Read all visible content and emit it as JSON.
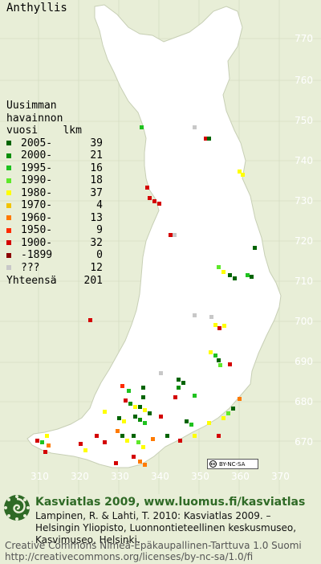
{
  "species": "Anthyllis",
  "legend": {
    "header": [
      "Uusimman",
      "havainnon",
      "vuosi    lkm"
    ],
    "rows": [
      {
        "label": "2005-",
        "count": "39",
        "color": "#006400"
      },
      {
        "label": "2000-",
        "count": "21",
        "color": "#0a8f0a"
      },
      {
        "label": "1995-",
        "count": "16",
        "color": "#1fc21f"
      },
      {
        "label": "1990-",
        "count": "18",
        "color": "#5ee82a"
      },
      {
        "label": "1980-",
        "count": "37",
        "color": "#ffff00"
      },
      {
        "label": "1970-",
        "count": "4",
        "color": "#f2c300"
      },
      {
        "label": "1960-",
        "count": "13",
        "color": "#ff7a00"
      },
      {
        "label": "1950-",
        "count": "9",
        "color": "#ff2a00"
      },
      {
        "label": "1900-",
        "count": "32",
        "color": "#d40000"
      },
      {
        "label": "-1899",
        "count": "0",
        "color": "#8b0000"
      },
      {
        "label": "???",
        "count": "12",
        "color": "#c8c8c8"
      }
    ],
    "total_label": "Yhteensä",
    "total_count": "201"
  },
  "y_axis_labels": [
    "770",
    "760",
    "750",
    "740",
    "730",
    "720",
    "710",
    "700",
    "690",
    "680",
    "670"
  ],
  "x_axis_labels": [
    "310",
    "320",
    "330",
    "340",
    "350",
    "360",
    "370"
  ],
  "license_badge": "BY-NC-SA",
  "footer": {
    "title": "Kasviatlas 2009, www.luomus.fi/kasviatlas",
    "citation_1": "Lampinen, R. & Lahti, T. 2010: Kasviatlas 2009. –",
    "citation_2": "Helsingin Yliopisto, Luonnontieteellinen keskusmuseo,",
    "citation_3": "Kasvimuseo, Helsinki.",
    "cc_line_1": "Creative Commons Nimeä-Epäkaupallinen-Tarttuva 1.0 Suomi",
    "cc_line_2": "http://creativecommons.org/licenses/by-nc-sa/1.0/fi"
  }
}
